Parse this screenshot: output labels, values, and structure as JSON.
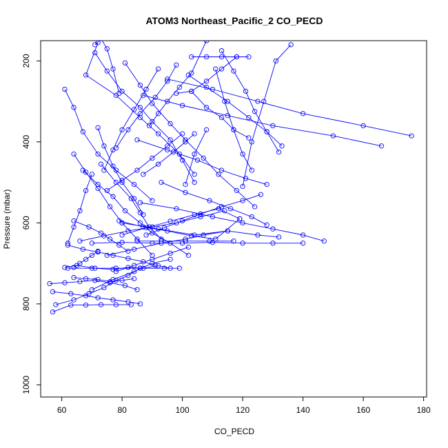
{
  "chart_data": {
    "type": "line",
    "title": "ATOM3 Northeast_Pacific_2 CO_PECD",
    "xlabel": "CO_PECD",
    "ylabel": "Pressure (mbar)",
    "xlim": [
      53,
      181
    ],
    "ylim": [
      1030,
      150
    ],
    "y_axis_reversed": true,
    "x_ticks": [
      60,
      80,
      100,
      120,
      140,
      160,
      180
    ],
    "y_ticks": [
      200,
      400,
      600,
      800,
      1000
    ],
    "grid": false,
    "legend": "none",
    "series_color": "#0000ff",
    "series": [
      {
        "x": [
          72,
          68,
          78,
          86,
          92,
          99,
          104
        ],
        "y": [
          155,
          235,
          285,
          340,
          380,
          430,
          480
        ]
      },
      {
        "x": [
          61,
          64,
          67,
          72,
          78,
          84,
          90
        ],
        "y": [
          270,
          315,
          375,
          430,
          470,
          505,
          545
        ]
      },
      {
        "x": [
          71,
          75,
          80,
          86,
          90,
          96,
          100,
          104
        ],
        "y": [
          180,
          225,
          275,
          315,
          350,
          395,
          445,
          500
        ]
      },
      {
        "x": [
          81,
          86,
          90,
          96,
          101,
          107,
          112,
          118,
          124
        ],
        "y": [
          205,
          260,
          305,
          355,
          395,
          440,
          480,
          520,
          560
        ]
      },
      {
        "x": [
          72,
          74,
          77,
          80,
          84,
          87
        ],
        "y": [
          365,
          410,
          460,
          500,
          540,
          580
        ]
      },
      {
        "x": [
          73,
          78,
          83,
          86,
          89,
          93
        ],
        "y": [
          455,
          500,
          540,
          575,
          610,
          640
        ]
      },
      {
        "x": [
          64,
          68,
          72,
          76,
          80,
          85,
          90
        ],
        "y": [
          430,
          475,
          515,
          560,
          600,
          640,
          680
        ]
      },
      {
        "x": [
          67,
          72,
          77,
          81,
          86,
          90,
          96,
          102
        ],
        "y": [
          470,
          505,
          535,
          570,
          600,
          625,
          650,
          680
        ]
      },
      {
        "x": [
          64,
          69,
          73,
          76,
          79,
          82
        ],
        "y": [
          595,
          610,
          625,
          640,
          655,
          670
        ]
      },
      {
        "x": [
          62,
          67,
          72,
          77,
          82,
          87,
          91
        ],
        "y": [
          655,
          665,
          672,
          680,
          688,
          696,
          705
        ]
      },
      {
        "x": [
          61,
          65,
          71,
          77,
          82,
          87,
          92,
          96
        ],
        "y": [
          710,
          705,
          712,
          715,
          710,
          712,
          706,
          712
        ]
      },
      {
        "x": [
          64,
          68,
          72,
          76,
          80,
          84
        ],
        "y": [
          735,
          738,
          740,
          745,
          742,
          738
        ]
      },
      {
        "x": [
          56,
          61,
          66,
          71,
          76,
          81,
          85
        ],
        "y": [
          750,
          748,
          745,
          742,
          748,
          755,
          765
        ]
      },
      {
        "x": [
          57,
          63,
          68,
          72,
          77,
          82,
          86
        ],
        "y": [
          770,
          775,
          780,
          785,
          790,
          795,
          800
        ]
      },
      {
        "x": [
          57,
          63,
          68,
          73,
          78,
          83
        ],
        "y": [
          820,
          803,
          803,
          802,
          802,
          802
        ]
      },
      {
        "x": [
          103,
          108,
          113,
          118,
          122
        ],
        "y": [
          190,
          190,
          190,
          190,
          190
        ]
      },
      {
        "x": [
          113,
          117,
          121,
          124,
          128,
          132
        ],
        "y": [
          175,
          225,
          275,
          325,
          375,
          425
        ]
      },
      {
        "x": [
          102,
          108,
          115,
          122,
          128,
          133
        ],
        "y": [
          235,
          265,
          300,
          340,
          375,
          410
        ]
      },
      {
        "x": [
          111,
          114,
          117,
          120,
          123
        ],
        "y": [
          220,
          300,
          370,
          430,
          470
        ]
      },
      {
        "x": [
          98,
          103,
          108,
          113,
          117,
          122
        ],
        "y": [
          280,
          275,
          315,
          340,
          370,
          390
        ]
      },
      {
        "x": [
          95,
          110,
          125,
          140,
          160,
          176
        ],
        "y": [
          245,
          270,
          300,
          330,
          360,
          385
        ]
      },
      {
        "x": [
          87,
          100,
          115,
          130,
          150,
          166
        ],
        "y": [
          285,
          310,
          335,
          360,
          385,
          410
        ]
      },
      {
        "x": [
          85,
          95,
          105,
          113,
          121,
          128
        ],
        "y": [
          395,
          420,
          445,
          470,
          490,
          505
        ]
      },
      {
        "x": [
          93,
          101,
          109,
          116,
          123,
          128
        ],
        "y": [
          500,
          525,
          545,
          565,
          585,
          605
        ]
      },
      {
        "x": [
          86,
          98,
          110,
          120,
          130,
          140,
          147
        ],
        "y": [
          550,
          565,
          585,
          600,
          615,
          630,
          645
        ]
      },
      {
        "x": [
          80,
          92,
          104,
          115,
          125,
          132
        ],
        "y": [
          600,
          615,
          630,
          620,
          630,
          635
        ]
      },
      {
        "x": [
          70,
          80,
          90,
          100,
          110,
          120,
          130,
          140
        ],
        "y": [
          650,
          648,
          650,
          650,
          648,
          650,
          650,
          650
        ]
      },
      {
        "x": [
          79,
          87,
          95,
          103,
          111,
          119
        ],
        "y": [
          595,
          610,
          620,
          632,
          640,
          590
        ]
      },
      {
        "x": [
          75,
          84,
          93,
          101,
          107,
          115
        ],
        "y": [
          680,
          665,
          650,
          640,
          630,
          620
        ]
      },
      {
        "x": [
          66,
          74,
          82,
          90,
          98,
          106,
          114
        ],
        "y": [
          645,
          632,
          620,
          610,
          600,
          585,
          570
        ]
      },
      {
        "x": [
          80,
          88,
          96,
          104,
          112,
          119
        ],
        "y": [
          630,
          612,
          596,
          580,
          565,
          590
        ]
      },
      {
        "x": [
          88,
          94,
          100,
          106,
          113,
          120,
          126
        ],
        "y": [
          630,
          612,
          595,
          578,
          560,
          545,
          530
        ]
      },
      {
        "x": [
          62,
          70,
          78,
          86,
          94,
          99
        ],
        "y": [
          712,
          712,
          712,
          712,
          712,
          712
        ]
      },
      {
        "x": [
          70,
          77,
          84,
          90,
          96
        ],
        "y": [
          765,
          740,
          720,
          700,
          690
        ]
      },
      {
        "x": [
          58,
          64,
          69,
          74,
          78,
          82,
          86
        ],
        "y": [
          802,
          790,
          775,
          760,
          742,
          730,
          712
        ]
      },
      {
        "x": [
          89,
          92,
          95,
          99,
          103,
          108
        ],
        "y": [
          360,
          330,
          300,
          265,
          230,
          150
        ]
      },
      {
        "x": [
          78,
          82,
          86,
          91,
          95,
          98
        ],
        "y": [
          415,
          370,
          330,
          290,
          250,
          210
        ]
      },
      {
        "x": [
          74,
          77,
          80,
          84,
          88,
          92
        ],
        "y": [
          470,
          420,
          370,
          320,
          270,
          220
        ]
      },
      {
        "x": [
          71,
          73,
          75,
          77,
          79
        ],
        "y": [
          160,
          145,
          170,
          220,
          280
        ]
      },
      {
        "x": [
          62,
          64,
          66,
          68,
          70
        ],
        "y": [
          650,
          610,
          570,
          520,
          480
        ]
      },
      {
        "x": [
          75,
          80,
          85,
          90,
          95,
          100
        ],
        "y": [
          520,
          495,
          470,
          440,
          410,
          380
        ]
      },
      {
        "x": [
          87,
          92,
          97,
          101,
          104
        ],
        "y": [
          480,
          455,
          425,
          400,
          380
        ]
      },
      {
        "x": [
          120,
          123,
          127,
          131,
          136
        ],
        "y": [
          510,
          400,
          300,
          200,
          160
        ]
      },
      {
        "x": [
          103,
          108,
          113,
          118
        ],
        "y": [
          275,
          250,
          220,
          190
        ]
      },
      {
        "x": [
          101,
          104,
          108
        ],
        "y": [
          505,
          430,
          370
        ]
      },
      {
        "x": [
          85,
          93,
          101,
          109,
          117
        ],
        "y": [
          645,
          645,
          645,
          645,
          645
        ]
      },
      {
        "x": [
          64,
          66,
          68,
          70,
          72
        ],
        "y": [
          710,
          700,
          690,
          680,
          670
        ]
      },
      {
        "x": [
          78,
          84,
          90,
          96,
          102
        ],
        "y": [
          720,
          705,
          690,
          675,
          660
        ]
      }
    ]
  }
}
